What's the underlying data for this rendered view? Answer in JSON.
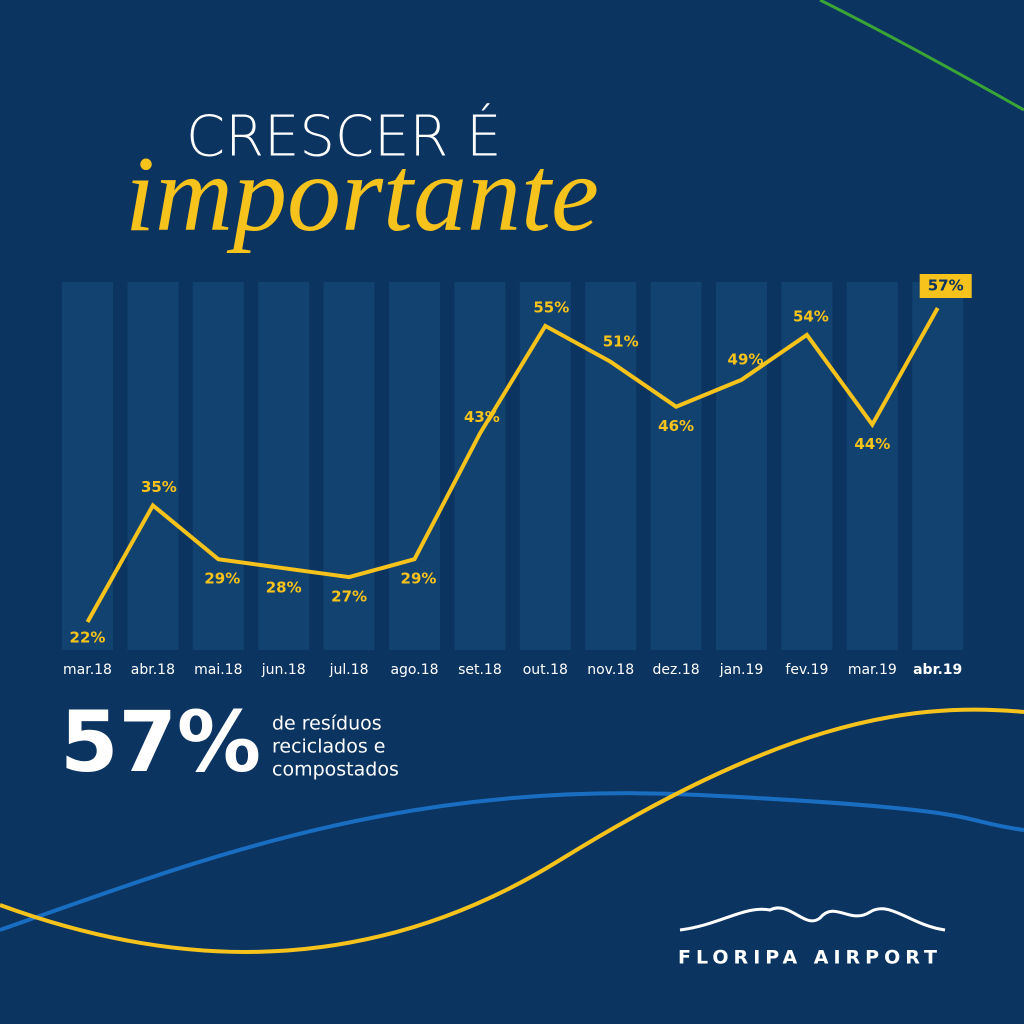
{
  "chart_data": {
    "type": "line",
    "title": "CRESCER É",
    "subtitle": "importante",
    "categories": [
      "mar.18",
      "abr.18",
      "mai.18",
      "jun.18",
      "jul.18",
      "ago.18",
      "set.18",
      "out.18",
      "nov.18",
      "dez.18",
      "jan.19",
      "fev.19",
      "mar.19",
      "abr.19"
    ],
    "series": [
      {
        "color": "#f6c21c",
        "values": [
          22,
          35,
          29,
          28,
          27,
          29,
          43,
          55,
          51,
          46,
          49,
          54,
          44,
          57
        ],
        "value_labels": [
          "22%",
          "35%",
          "29%",
          "28%",
          "27%",
          "29%",
          "43%",
          "55%",
          "51%",
          "46%",
          "49%",
          "54%",
          "44%",
          "57%"
        ]
      }
    ],
    "annotation": {
      "value": 57,
      "label": "57%",
      "lines": [
        "de resíduos",
        "reciclados e",
        "compostados"
      ]
    },
    "logo": "FLORIPA AIRPORT"
  }
}
